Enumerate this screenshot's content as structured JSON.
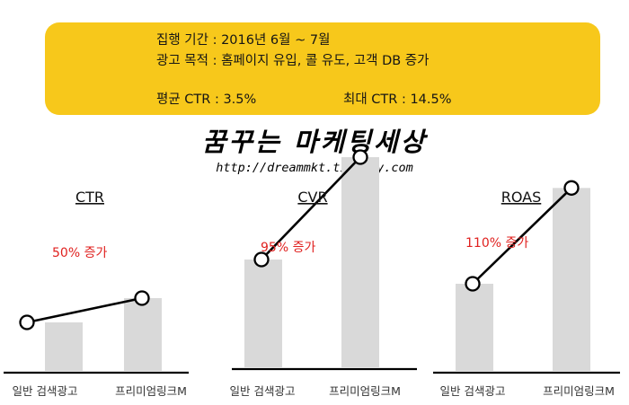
{
  "info": {
    "period": "집행 기간 : 2016년 6월 ~ 7월",
    "purpose": "광고 목적 : 홈페이지 유입, 콜 유도, 고객 DB 증가",
    "avg_ctr": "평균 CTR : 3.5%",
    "max_ctr": "최대 CTR : 14.5%"
  },
  "brand": {
    "name": "꿈꾸는 마케팅세상",
    "url": "http://dreammkt.tistory.com"
  },
  "colors": {
    "banner": "#f7c81b",
    "bar": "#d9d9d9",
    "annotation": "#e0211f",
    "line": "#000000"
  },
  "chart_data": [
    {
      "type": "bar",
      "title": "CTR",
      "categories": [
        "일반 검색광고",
        "프리미엄링크M"
      ],
      "values": [
        1,
        1.5
      ],
      "annotation": "50% 증가"
    },
    {
      "type": "bar",
      "title": "CVR",
      "categories": [
        "일반 검색광고",
        "프리미엄링크M"
      ],
      "values": [
        1,
        1.95
      ],
      "annotation": "95% 증가"
    },
    {
      "type": "bar",
      "title": "ROAS",
      "categories": [
        "일반 검색광고",
        "프리미엄링크M"
      ],
      "values": [
        1,
        2.1
      ],
      "annotation": "110% 증가"
    }
  ]
}
